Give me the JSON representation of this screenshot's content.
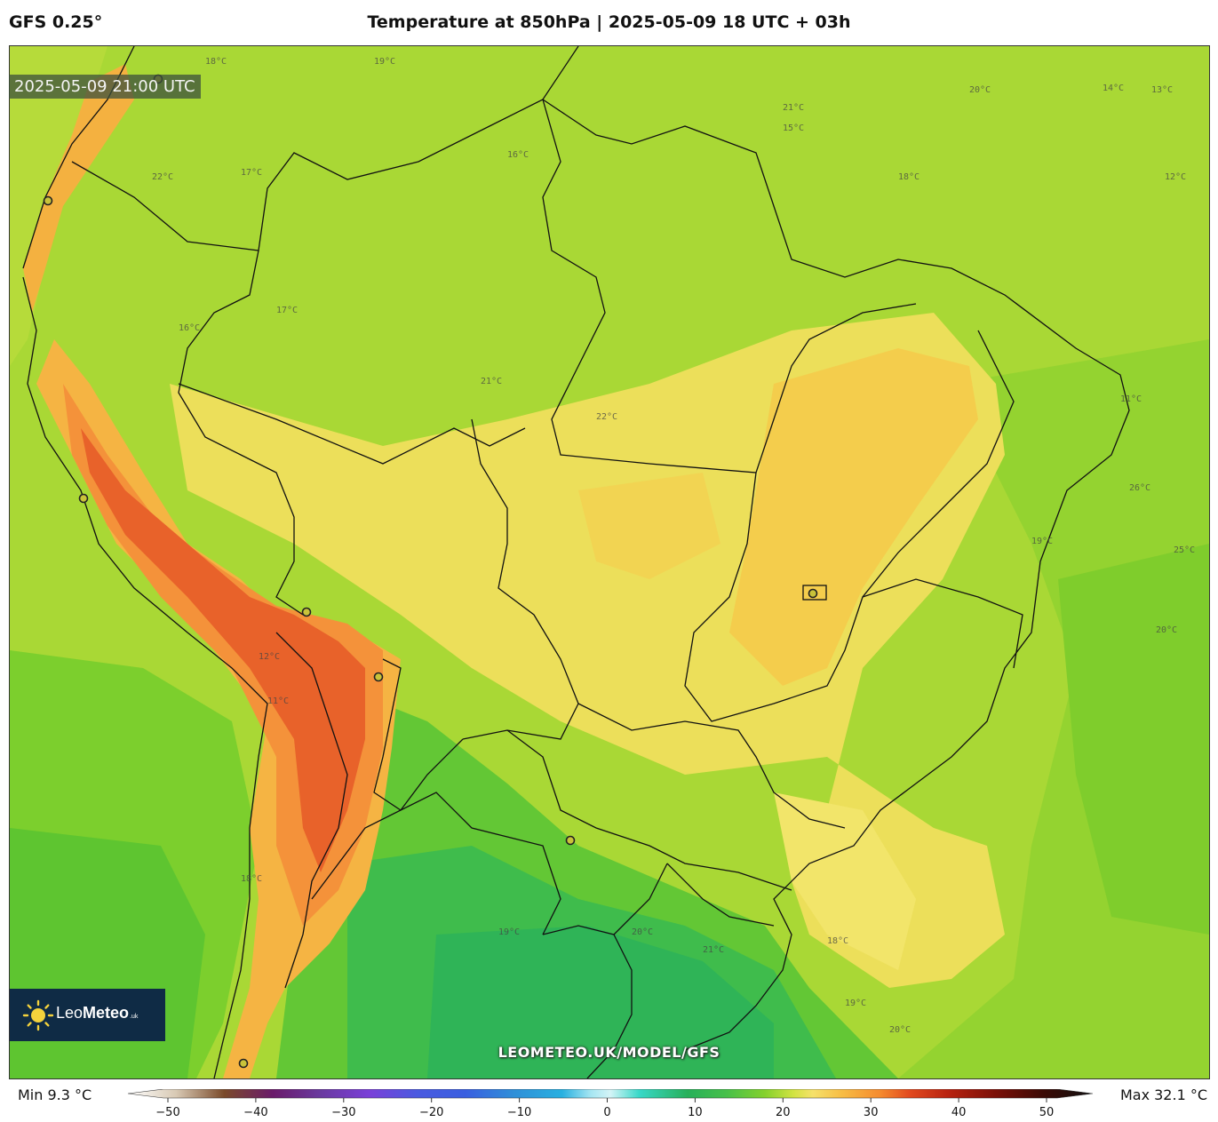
{
  "header": {
    "model": "GFS 0.25°",
    "title": "Temperature at 850hPa | 2025-05-09 18 UTC + 03h"
  },
  "map": {
    "valid_time": "2025-05-09 21:00 UTC",
    "watermark": "LEOMETEO.UK/MODEL/GFS",
    "contour_labels": [
      "18°C",
      "19°C",
      "20°C",
      "21°C",
      "22°C",
      "17°C",
      "16°C",
      "15°C",
      "14°C",
      "13°C",
      "12°C",
      "11°C",
      "26°C",
      "25°C",
      "20°C",
      "19°C",
      "18°C",
      "17°C",
      "21°C",
      "22°C",
      "16°C",
      "12°C",
      "11°C",
      "18°C",
      "19°C",
      "20°C",
      "21°C",
      "18°C",
      "19°C",
      "20°C"
    ],
    "colors": {
      "warm_max": "#e8522a",
      "warm": "#f6a93a",
      "mild": "#f5de6a",
      "neutral": "#c9e13f",
      "cool": "#84d12c",
      "cold": "#31b64c",
      "border": "#111111"
    }
  },
  "logo": {
    "name_light": "Leo",
    "name_bold": "Meteo",
    "suffix": ".uk",
    "icon": "sun-icon"
  },
  "legend": {
    "min_label": "Min 9.3 °C",
    "max_label": "Max 32.1 °C",
    "ticks": [
      "−50",
      "−40",
      "−30",
      "−20",
      "−10",
      "0",
      "10",
      "20",
      "30",
      "40",
      "50"
    ],
    "tick_values": [
      -50,
      -40,
      -30,
      -20,
      -10,
      0,
      10,
      20,
      30,
      40,
      50
    ],
    "range": [
      -50,
      50
    ],
    "color_stops": [
      {
        "v": -50,
        "c": "#ffffff"
      },
      {
        "v": -45,
        "c": "#d8c9b4"
      },
      {
        "v": -40,
        "c": "#7a4a2a"
      },
      {
        "v": -35,
        "c": "#6a1b6a"
      },
      {
        "v": -30,
        "c": "#6a3aa0"
      },
      {
        "v": -25,
        "c": "#7a3fd8"
      },
      {
        "v": -20,
        "c": "#4a5ae0"
      },
      {
        "v": -15,
        "c": "#3a5fe0"
      },
      {
        "v": -10,
        "c": "#2f8fd8"
      },
      {
        "v": -5,
        "c": "#28b0e0"
      },
      {
        "v": -2,
        "c": "#a6e6f2"
      },
      {
        "v": 0,
        "c": "#d4f4f7"
      },
      {
        "v": 3,
        "c": "#38d8c8"
      },
      {
        "v": 8,
        "c": "#27b05a"
      },
      {
        "v": 12,
        "c": "#46c04a"
      },
      {
        "v": 16,
        "c": "#84d12c"
      },
      {
        "v": 19,
        "c": "#d2e342"
      },
      {
        "v": 21,
        "c": "#f6e16a"
      },
      {
        "v": 24,
        "c": "#f7bd45"
      },
      {
        "v": 28,
        "c": "#f58a2e"
      },
      {
        "v": 31,
        "c": "#e24a1f"
      },
      {
        "v": 35,
        "c": "#b82310"
      },
      {
        "v": 40,
        "c": "#7a1008"
      },
      {
        "v": 45,
        "c": "#3a0a05"
      },
      {
        "v": 50,
        "c": "#111111"
      }
    ]
  }
}
